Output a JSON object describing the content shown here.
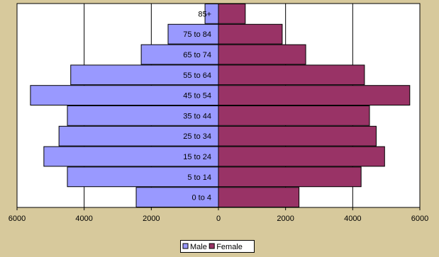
{
  "chart_data": {
    "type": "bar",
    "orientation": "horizontal",
    "categories": [
      "0 to 4",
      "5 to 14",
      "15 to 24",
      "25 to 34",
      "35 to 44",
      "45 to 54",
      "55 to 64",
      "65 to 74",
      "75 to 84",
      "85+"
    ],
    "series": [
      {
        "name": "Male",
        "color": "#9999ff",
        "values": [
          2450,
          4500,
          5200,
          4750,
          4500,
          5600,
          4400,
          2300,
          1500,
          400
        ]
      },
      {
        "name": "Female",
        "color": "#993366",
        "values": [
          2400,
          4250,
          4950,
          4700,
          4500,
          5700,
          4350,
          2600,
          1900,
          800
        ]
      }
    ],
    "xlim": [
      -6000,
      6000
    ],
    "xticks": [
      -6000,
      -4000,
      -2000,
      0,
      2000,
      4000,
      6000
    ],
    "xtick_labels": [
      "6000",
      "4000",
      "2000",
      "0",
      "2000",
      "4000",
      "6000"
    ],
    "title": "",
    "xlabel": "",
    "ylabel": "",
    "grid": "vertical",
    "legend": "bottom"
  }
}
